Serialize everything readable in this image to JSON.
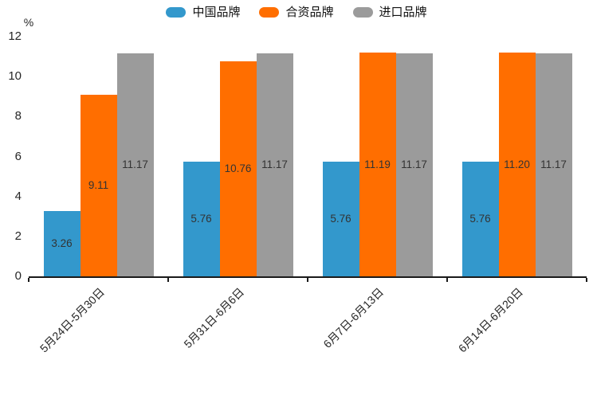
{
  "chart_data": {
    "type": "bar",
    "title": "",
    "unit_label": "%",
    "xlabel": "",
    "ylabel": "%",
    "ylim": [
      0,
      12
    ],
    "yticks": [
      0,
      2,
      4,
      6,
      8,
      10,
      12
    ],
    "grid": false,
    "legend_position": "top",
    "categories": [
      "5月24日-5月30日",
      "5月31日-6月6日",
      "6月7日-6月13日",
      "6月14日-6月20日"
    ],
    "series": [
      {
        "name": "中国品牌",
        "color": "#3398CC",
        "values": [
          3.26,
          5.76,
          5.76,
          5.76
        ]
      },
      {
        "name": "合资品牌",
        "color": "#FF6E00",
        "values": [
          9.11,
          10.76,
          11.19,
          11.2
        ]
      },
      {
        "name": "进口品牌",
        "color": "#9B9B9B",
        "values": [
          11.17,
          11.17,
          11.17,
          11.17
        ]
      }
    ],
    "value_label_decimals": 2
  }
}
